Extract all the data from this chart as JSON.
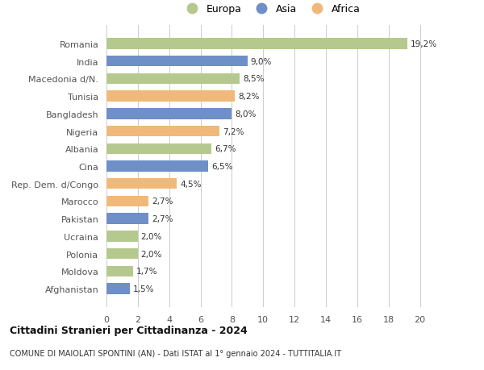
{
  "countries": [
    "Romania",
    "India",
    "Macedonia d/N.",
    "Tunisia",
    "Bangladesh",
    "Nigeria",
    "Albania",
    "Cina",
    "Rep. Dem. d/Congo",
    "Marocco",
    "Pakistan",
    "Ucraina",
    "Polonia",
    "Moldova",
    "Afghanistan"
  ],
  "values": [
    19.2,
    9.0,
    8.5,
    8.2,
    8.0,
    7.2,
    6.7,
    6.5,
    4.5,
    2.7,
    2.7,
    2.0,
    2.0,
    1.7,
    1.5
  ],
  "labels": [
    "19,2%",
    "9,0%",
    "8,5%",
    "8,2%",
    "8,0%",
    "7,2%",
    "6,7%",
    "6,5%",
    "4,5%",
    "2,7%",
    "2,7%",
    "2,0%",
    "2,0%",
    "1,7%",
    "1,5%"
  ],
  "continents": [
    "Europa",
    "Asia",
    "Europa",
    "Africa",
    "Asia",
    "Africa",
    "Europa",
    "Asia",
    "Africa",
    "Africa",
    "Asia",
    "Europa",
    "Europa",
    "Europa",
    "Asia"
  ],
  "colors": {
    "Europa": "#b5c98e",
    "Asia": "#6e8fc7",
    "Africa": "#f0b97a"
  },
  "legend_entries": [
    "Europa",
    "Asia",
    "Africa"
  ],
  "xlim": [
    0,
    21
  ],
  "xticks": [
    0,
    2,
    4,
    6,
    8,
    10,
    12,
    14,
    16,
    18,
    20
  ],
  "title1": "Cittadini Stranieri per Cittadinanza - 2024",
  "title2": "COMUNE DI MAIOLATI SPONTINI (AN) - Dati ISTAT al 1° gennaio 2024 - TUTTITALIA.IT",
  "background_color": "#ffffff",
  "bar_height": 0.62
}
